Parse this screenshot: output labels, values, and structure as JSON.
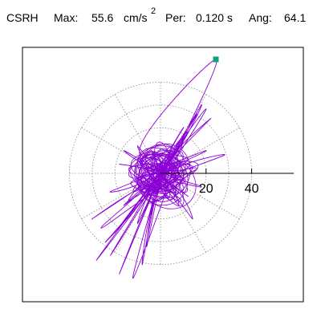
{
  "header": {
    "station": "CSRH",
    "max_label": "Max:",
    "max_value": "55.6",
    "max_unit": "cm/s",
    "max_unit_exp": "2",
    "period_label": "Per:",
    "period_value": "0.120 s",
    "angle_label": "Ang:",
    "angle_value": "64.1"
  },
  "colors": {
    "trace": "#8a00d4",
    "marker": "#0fa080",
    "axis": "#000000",
    "grid": "#8a8a8a"
  },
  "chart_data": {
    "type": "scatter",
    "title": "",
    "xlabel": "",
    "ylabel": "",
    "radial_ticks": [
      20,
      40
    ],
    "tick_labels": [
      "20",
      "40"
    ],
    "rings": [
      10,
      20,
      30,
      40
    ],
    "spokes_deg": [
      0,
      30,
      60,
      90,
      120,
      150,
      180,
      210,
      240,
      270,
      300,
      330
    ],
    "xlim": [
      -60,
      60
    ],
    "ylim": [
      -55,
      52
    ],
    "max_point": {
      "x": 24.3,
      "y": 50.0
    },
    "series": [
      {
        "values": [
          [
            0,
            0
          ],
          [
            3,
            2
          ],
          [
            -2,
            4
          ],
          [
            5,
            -1
          ],
          [
            -4,
            -3
          ],
          [
            6,
            3
          ],
          [
            -6,
            2
          ],
          [
            2,
            -6
          ],
          [
            8,
            4
          ],
          [
            -7,
            -5
          ],
          [
            4,
            8
          ],
          [
            -3,
            -9
          ],
          [
            10,
            1
          ],
          [
            -10,
            -2
          ],
          [
            7,
            -8
          ],
          [
            -8,
            7
          ],
          [
            12,
            6
          ],
          [
            -12,
            -8
          ],
          [
            5,
            12
          ],
          [
            -5,
            -13
          ],
          [
            14,
            3
          ],
          [
            -14,
            2
          ],
          [
            9,
            -12
          ],
          [
            -9,
            11
          ],
          [
            24.3,
            50.0
          ],
          [
            8,
            12
          ],
          [
            -2,
            -4
          ],
          [
            18,
            30
          ],
          [
            5,
            6
          ],
          [
            -28,
            -38
          ],
          [
            -6,
            -8
          ],
          [
            4,
            2
          ],
          [
            -24,
            -30
          ],
          [
            -8,
            -12
          ],
          [
            2,
            5
          ],
          [
            -18,
            -44
          ],
          [
            -4,
            -10
          ],
          [
            6,
            3
          ],
          [
            -12,
            -46
          ],
          [
            -2,
            -8
          ],
          [
            3,
            4
          ],
          [
            -20,
            -26
          ],
          [
            -5,
            -6
          ],
          [
            16,
            26
          ],
          [
            3,
            4
          ],
          [
            10,
            14
          ],
          [
            2,
            2
          ],
          [
            -30,
            -20
          ],
          [
            -8,
            -6
          ],
          [
            28,
            8
          ],
          [
            6,
            2
          ],
          [
            -16,
            -14
          ],
          [
            -4,
            -5
          ],
          [
            -22,
            -36
          ],
          [
            -3,
            -6
          ],
          [
            12,
            18
          ],
          [
            1,
            2
          ],
          [
            -8,
            -40
          ],
          [
            -2,
            -10
          ],
          [
            20,
            28
          ],
          [
            4,
            6
          ],
          [
            -10,
            -22
          ],
          [
            -2,
            -4
          ],
          [
            8,
            -14
          ],
          [
            2,
            -4
          ],
          [
            -14,
            -12
          ],
          [
            -2,
            -2
          ],
          [
            14,
            -20
          ],
          [
            3,
            -6
          ],
          [
            -26,
            -24
          ],
          [
            -6,
            -5
          ],
          [
            10,
            20
          ],
          [
            2,
            4
          ],
          [
            -6,
            -32
          ],
          [
            -1,
            -8
          ],
          [
            16,
            2
          ],
          [
            3,
            1
          ],
          [
            -18,
            4
          ],
          [
            -4,
            1
          ],
          [
            12,
            -10
          ],
          [
            3,
            -3
          ],
          [
            -10,
            12
          ],
          [
            -2,
            3
          ],
          [
            20,
            10
          ],
          [
            5,
            3
          ],
          [
            -22,
            -8
          ],
          [
            -5,
            -2
          ],
          [
            22,
            24
          ],
          [
            4,
            6
          ],
          [
            -4,
            -18
          ],
          [
            0,
            -4
          ],
          [
            18,
            -6
          ],
          [
            4,
            -1
          ],
          [
            -16,
            10
          ],
          [
            -3,
            2
          ],
          [
            9,
            5
          ],
          [
            -6,
            -7
          ],
          [
            11,
            -3
          ],
          [
            -9,
            4
          ],
          [
            6,
            9
          ],
          [
            -7,
            -10
          ],
          [
            13,
            4
          ],
          [
            -13,
            -4
          ],
          [
            4,
            -10
          ],
          [
            -4,
            10
          ],
          [
            0,
            0
          ]
        ]
      }
    ]
  }
}
